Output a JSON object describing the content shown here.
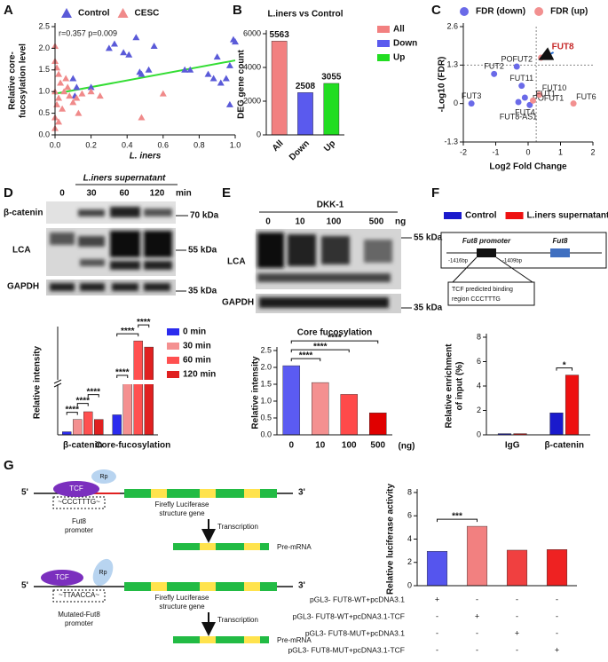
{
  "panel_labels": [
    "A",
    "B",
    "C",
    "D",
    "E",
    "F",
    "G"
  ],
  "chart_data": [
    {
      "type": "scatter",
      "annotation": "r=0.357  p=0.009",
      "x_label": "L. iners",
      "y_label": [
        "Relative core-",
        "fucosylation level"
      ],
      "xlim": [
        0,
        1
      ],
      "ylim": [
        0,
        2.5
      ],
      "xticks": [
        {
          "value": 0,
          "label": "0.0"
        },
        0.2,
        0.4,
        0.6,
        0.8,
        {
          "value": 1,
          "label": "1.0"
        }
      ],
      "yticks": [
        {
          "value": 0,
          "label": "0.0"
        },
        0.5,
        {
          "value": 1,
          "label": "1.0"
        },
        1.5,
        {
          "value": 2,
          "label": "2.0"
        },
        2.5
      ],
      "series": [
        {
          "name": "Control",
          "color": "#5a5ad8",
          "marker": "triangle",
          "x": [
            0.1,
            0.12,
            0.11,
            0.2,
            0.3,
            0.33,
            0.38,
            0.41,
            0.45,
            0.47,
            0.48,
            0.52,
            0.55,
            0.72,
            0.75,
            0.85,
            0.88,
            0.9,
            0.92,
            0.95,
            0.97,
            0.97,
            0.99,
            1.0
          ],
          "values": [
            1.3,
            1.1,
            0.9,
            1.1,
            2.0,
            2.1,
            1.9,
            1.85,
            2.25,
            1.45,
            1.4,
            1.5,
            2.05,
            1.5,
            1.5,
            1.4,
            1.3,
            1.8,
            1.2,
            1.3,
            1.6,
            0.7,
            2.2,
            2.15
          ]
        },
        {
          "name": "CESC",
          "color": "#f08a8a",
          "marker": "triangle",
          "x": [
            0,
            0,
            0.01,
            0.02,
            0.03,
            0,
            0.02,
            0.01,
            0.04,
            0,
            0.02,
            0,
            0.05,
            0.08,
            0.1,
            0.12,
            0.15,
            0.2,
            0.25,
            0.48,
            0.6,
            0.13,
            0.07,
            0.06
          ],
          "values": [
            2.05,
            1.7,
            1.55,
            1.4,
            1.2,
            1.0,
            0.85,
            0.7,
            0.6,
            0.4,
            0.3,
            0.15,
            1.0,
            0.9,
            0.75,
            0.85,
            0.95,
            1.0,
            0.9,
            0.4,
            0.95,
            0.5,
            1.1,
            1.3
          ]
        }
      ],
      "fit_line": {
        "color": "#33dd33",
        "x": [
          0,
          1
        ],
        "values": [
          0.95,
          1.72
        ]
      }
    },
    {
      "type": "bar",
      "title": "L.iners vs Control",
      "y_label": "DEG gene count",
      "categories": [
        "All",
        "Down",
        "Up"
      ],
      "values": [
        5563,
        2508,
        3055
      ],
      "colors": [
        "#f28080",
        "#5a5aee",
        "#22dd22"
      ],
      "show_values": true,
      "ylim": [
        0,
        6000
      ],
      "yticks": [
        0,
        2000,
        4000,
        6000
      ]
    },
    {
      "type": "scatter",
      "x_label": "Log2 Fold Change",
      "y_label": "-Log10 (FDR)",
      "xlim": [
        -2,
        2
      ],
      "ylim": [
        -1.3,
        2.6
      ],
      "xticks": [
        -2,
        -1,
        0,
        1,
        2
      ],
      "yticks": [
        -1.3,
        0,
        1.3,
        2.6
      ],
      "ref_x": [
        0.25
      ],
      "ref_y": [
        1.3
      ],
      "series": [
        {
          "name": "FDR (down)",
          "color": "#6a6ae8",
          "marker": "circle",
          "x": [
            -0.35,
            -1.05,
            -0.2,
            -0.1,
            -1.75,
            -0.3,
            0.05
          ],
          "values": [
            1.25,
            1.0,
            0.6,
            0.2,
            0.0,
            0.05,
            -0.05
          ],
          "labels": [
            "POFUT2",
            "FUT2",
            "FUT11",
            "FUT4",
            "FUT3",
            "FUT8-AS1",
            "POFUT1"
          ]
        },
        {
          "name": "FDR (up)",
          "color": "#f29090",
          "marker": "circle",
          "x": [
            0.4,
            0.35,
            0.15,
            1.4
          ],
          "values": [
            1.55,
            0.3,
            0.1,
            0.0
          ],
          "labels": [
            "FUT8",
            "FUT10",
            "FUT1",
            "FUT6"
          ],
          "label_colors": [
            "#c62828",
            "#222",
            "#222",
            "#222"
          ]
        }
      ]
    },
    {
      "type": "grouped_bar",
      "y_label": "Relative intensity",
      "axis_break": true,
      "categories": [
        "β-catenin",
        "Core-fucosylation"
      ],
      "ylim": [
        0,
        3.4
      ],
      "series": [
        {
          "name": "0 min",
          "color": "#2b2bee",
          "values": [
            0.1,
            0.65
          ]
        },
        {
          "name": "30 min",
          "color": "#f49090",
          "values": [
            0.5,
            1.7
          ]
        },
        {
          "name": "60 min",
          "color": "#ff5050",
          "values": [
            0.75,
            3.05
          ]
        },
        {
          "name": "120 min",
          "color": "#e02020",
          "values": [
            0.5,
            2.85
          ]
        }
      ],
      "significance": [
        {
          "label": "****",
          "category": 0,
          "from": 0,
          "to": 1
        },
        {
          "label": "****",
          "category": 0,
          "from": 1,
          "to": 2
        },
        {
          "label": "****",
          "category": 0,
          "from": 2,
          "to": 3
        },
        {
          "label": "****",
          "category": 1,
          "from": 0,
          "to": 1
        },
        {
          "label": "****",
          "category": 1,
          "from": 0,
          "to": 2
        },
        {
          "label": "****",
          "category": 1,
          "from": 2,
          "to": 3
        }
      ]
    },
    {
      "type": "bar",
      "title": "Core fucosylation",
      "y_label": "Relative intensity",
      "x_label": "(ng)",
      "categories": [
        "0",
        "10",
        "100",
        "500"
      ],
      "values": [
        2.05,
        1.55,
        1.2,
        0.65
      ],
      "colors": [
        "#5b5bf2",
        "#f49090",
        "#ff4a4a",
        "#e00000"
      ],
      "ylim": [
        0,
        2.5
      ],
      "yticks": [
        {
          "value": 0,
          "label": "0.0"
        },
        0.5,
        {
          "value": 1,
          "label": "1.0"
        },
        1.5,
        {
          "value": 2,
          "label": "2.0"
        },
        2.5
      ],
      "significance": [
        {
          "label": "****",
          "from": 0,
          "to": 1
        },
        {
          "label": "****",
          "from": 0,
          "to": 2
        },
        {
          "label": "****",
          "from": 0,
          "to": 3
        }
      ]
    },
    {
      "type": "grouped_bar",
      "y_label": [
        "Relative enrichment",
        "of input (%)"
      ],
      "categories": [
        "IgG",
        "β-catenin"
      ],
      "ylim": [
        0,
        8
      ],
      "yticks": [
        0,
        2,
        4,
        6,
        8
      ],
      "series": [
        {
          "name": "Control",
          "color": "#1a1acc",
          "values": [
            0.1,
            1.8
          ]
        },
        {
          "name": "L.iners supernatant",
          "color": "#ee1111",
          "values": [
            0.1,
            4.9
          ]
        }
      ],
      "significance": [
        {
          "label": "*",
          "category": 1,
          "from": 0,
          "to": 1
        }
      ]
    },
    {
      "type": "bar",
      "y_label": "Relative luciferase activity",
      "categories": [
        null,
        null,
        null,
        null
      ],
      "values": [
        2.95,
        5.1,
        3.05,
        3.1
      ],
      "colors": [
        "#5555ee",
        "#f28080",
        "#f04040",
        "#ee2222"
      ],
      "ylim": [
        0,
        8
      ],
      "yticks": [
        0,
        2,
        4,
        6,
        8
      ],
      "significance": [
        {
          "label": "***",
          "from": 0,
          "to": 1
        }
      ],
      "conditions": [
        {
          "label": "pGL3- FUT8-WT+pcDNA3.1",
          "marks": [
            "+",
            "-",
            "-",
            "-"
          ]
        },
        {
          "label": "pGL3- FUT8-WT+pcDNA3.1-TCF",
          "marks": [
            "-",
            "+",
            "-",
            "-"
          ]
        },
        {
          "label": "pGL3- FUT8-MUT+pcDNA3.1",
          "marks": [
            "-",
            "-",
            "+",
            "-"
          ]
        },
        {
          "label": "pGL3- FUT8-MUT+pcDNA3.1-TCF",
          "marks": [
            "-",
            "-",
            "-",
            "+"
          ]
        }
      ]
    }
  ],
  "blot_d": {
    "header": "L.iners supernatant",
    "lanes": [
      "0",
      "30",
      "60",
      "120"
    ],
    "lane_unit": "min",
    "rows": [
      "β-catenin",
      "LCA",
      "GAPDH"
    ],
    "markers": [
      "70 kDa",
      "55 kDa",
      "35 kDa"
    ]
  },
  "blot_e": {
    "header": "DKK-1",
    "lanes": [
      "0",
      "10",
      "100",
      "500"
    ],
    "lane_unit": "ng",
    "rows": [
      "LCA",
      "GAPDH"
    ],
    "markers": [
      "55 kDa",
      "35 kDa"
    ]
  },
  "promoter_f": {
    "promoter": "Fut8 promoter",
    "gene": "Fut8",
    "start": "-1416bp",
    "end": "-1409bp",
    "note": [
      "TCF predicted binding",
      "region CCCTTTG"
    ]
  },
  "diagram_g": {
    "five_prime": "5'",
    "three_prime": "3'",
    "tcf": "TCF",
    "rp": "Rp",
    "wt_seq": "~CCCTTTG~",
    "wt_promoter": [
      "Fut8",
      "promoter"
    ],
    "gene": [
      "Firefly Luciferase",
      "structure gene"
    ],
    "transcription": "Transcription",
    "pre_mrna": "Pre-mRNA",
    "mut_seq": "~TTAACCA~",
    "mut_promoter": [
      "Mutated-Fut8",
      "promoter"
    ]
  }
}
